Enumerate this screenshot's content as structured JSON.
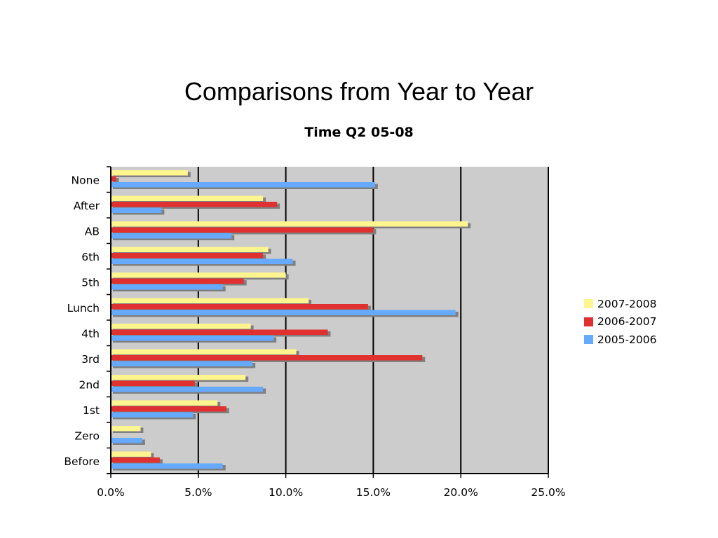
{
  "page": {
    "title": "Comparisons from Year to Year"
  },
  "chart_data": {
    "type": "bar",
    "orientation": "horizontal",
    "title": "Time Q2 05-08",
    "xlabel": "",
    "ylabel": "",
    "categories": [
      "None",
      "After",
      "AB",
      "6th",
      "5th",
      "Lunch",
      "4th",
      "3rd",
      "2nd",
      "1st",
      "Zero",
      "Before"
    ],
    "series": [
      {
        "name": "2007-2008",
        "color": "#fff58f",
        "values": [
          4.4,
          8.7,
          20.4,
          9.0,
          10.0,
          11.3,
          8.0,
          10.6,
          7.7,
          6.1,
          1.7,
          2.3
        ]
      },
      {
        "name": "2006-2007",
        "color": "#e03030",
        "values": [
          0.3,
          9.5,
          15.0,
          8.7,
          7.6,
          14.7,
          12.4,
          17.8,
          4.8,
          6.6,
          0.0,
          2.8
        ]
      },
      {
        "name": "2005-2006",
        "color": "#66aaff",
        "values": [
          15.1,
          2.9,
          6.9,
          10.4,
          6.4,
          19.7,
          9.3,
          8.1,
          8.7,
          4.7,
          1.8,
          6.4
        ]
      }
    ],
    "xlim": [
      0,
      25
    ],
    "xticks": [
      "0.0%",
      "5.0%",
      "10.0%",
      "15.0%",
      "20.0%",
      "25.0%"
    ],
    "grid": true,
    "plot_background": "#cccccc",
    "shadow_color": "#808080",
    "legend_position": "right"
  }
}
